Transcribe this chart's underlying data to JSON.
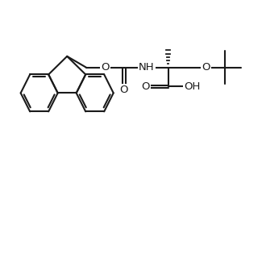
{
  "background_color": "#ffffff",
  "line_color": "#1a1a1a",
  "line_width": 1.5,
  "font_size": 9.5,
  "fig_size": [
    3.3,
    3.3
  ],
  "dpi": 100,
  "xlim": [
    0,
    10
  ],
  "ylim": [
    0,
    10
  ]
}
